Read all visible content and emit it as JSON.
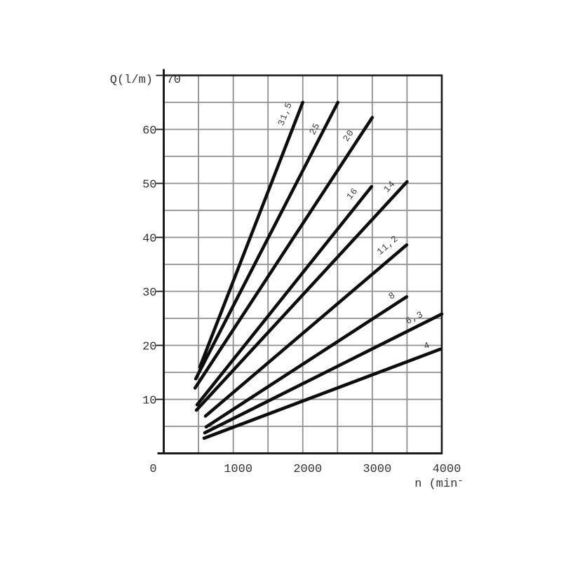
{
  "page": {
    "background_color": "#ffffff",
    "description": "Scanned catalog performance chart: pump flow rate Q versus rotational speed n for nine pump sizes"
  },
  "chart_data": {
    "type": "line",
    "title": "",
    "xlabel": "n (min⁻",
    "ylabel": "Q(l/m)",
    "xlim": [
      0,
      4000
    ],
    "ylim": [
      0,
      70
    ],
    "x_tick_values": [
      0,
      1000,
      2000,
      3000,
      4000
    ],
    "x_tick_labels": [
      "0",
      "1000",
      "2000",
      "3000",
      "4000"
    ],
    "x_grid_step": 500,
    "y_tick_values": [
      10,
      20,
      30,
      40,
      50,
      60,
      70
    ],
    "y_tick_labels": [
      "10",
      "20",
      "30",
      "40",
      "50",
      "60",
      "70"
    ],
    "y_grid_step": 5,
    "grid": "on",
    "legend_position": "none (inline rotated labels on each line)",
    "colors": {
      "grid": "#8f8f8f",
      "curve": "#0d0d0d",
      "axis": "#1a1a1a",
      "text": "#333333"
    },
    "series": [
      {
        "name": "31,5",
        "points": [
          [
            520,
            16.0
          ],
          [
            2000,
            65.0
          ]
        ],
        "label_pos": {
          "n": 1780,
          "q": 62.7
        }
      },
      {
        "name": "25",
        "points": [
          [
            460,
            13.8
          ],
          [
            2505,
            65.0
          ]
        ],
        "label_pos": {
          "n": 2205,
          "q": 59.9
        }
      },
      {
        "name": "20",
        "points": [
          [
            450,
            12.1
          ],
          [
            3000,
            62.2
          ]
        ],
        "label_pos": {
          "n": 2690,
          "q": 58.6
        }
      },
      {
        "name": "16",
        "points": [
          [
            480,
            9.0
          ],
          [
            2990,
            49.4
          ]
        ],
        "label_pos": {
          "n": 2740,
          "q": 47.8
        }
      },
      {
        "name": "14",
        "points": [
          [
            470,
            8.0
          ],
          [
            3500,
            50.3
          ]
        ],
        "label_pos": {
          "n": 3275,
          "q": 49.1
        }
      },
      {
        "name": "11,2",
        "points": [
          [
            600,
            6.9
          ],
          [
            3495,
            38.6
          ]
        ],
        "label_pos": {
          "n": 3245,
          "q": 38.2
        }
      },
      {
        "name": "8",
        "points": [
          [
            610,
            4.9
          ],
          [
            3495,
            29.0
          ]
        ],
        "label_pos": {
          "n": 3305,
          "q": 28.8
        }
      },
      {
        "name": "6,3",
        "points": [
          [
            590,
            3.8
          ],
          [
            4000,
            25.8
          ]
        ],
        "label_pos": {
          "n": 3625,
          "q": 24.7
        }
      },
      {
        "name": "4",
        "points": [
          [
            580,
            2.8
          ],
          [
            3980,
            19.3
          ]
        ],
        "label_pos": {
          "n": 3800,
          "q": 19.5
        }
      }
    ]
  }
}
